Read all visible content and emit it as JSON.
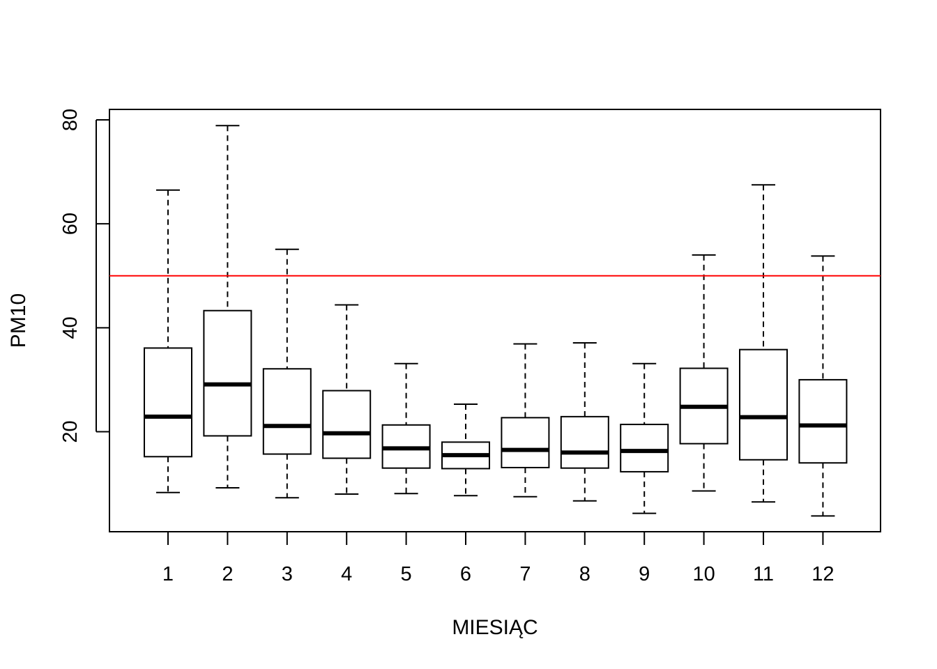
{
  "chart_data": {
    "type": "boxplot",
    "xlabel": "MIESIĄC",
    "ylabel": "PM10",
    "categories": [
      "1",
      "2",
      "3",
      "4",
      "5",
      "6",
      "7",
      "8",
      "9",
      "10",
      "11",
      "12"
    ],
    "yticks": [
      20,
      40,
      60,
      80
    ],
    "ytick_labels": [
      "20",
      "40",
      "60",
      "80"
    ],
    "ylim": [
      2.5,
      82
    ],
    "boxes": [
      {
        "category": "1",
        "whisker_low": 8.3,
        "q1": 15.2,
        "median": 22.9,
        "q3": 36.1,
        "whisker_high": 66.5
      },
      {
        "category": "2",
        "whisker_low": 9.2,
        "q1": 19.2,
        "median": 29.1,
        "q3": 43.3,
        "whisker_high": 78.9
      },
      {
        "category": "3",
        "whisker_low": 7.3,
        "q1": 15.7,
        "median": 21.1,
        "q3": 32.1,
        "whisker_high": 55.1
      },
      {
        "category": "4",
        "whisker_low": 8.0,
        "q1": 14.9,
        "median": 19.7,
        "q3": 27.9,
        "whisker_high": 44.4
      },
      {
        "category": "5",
        "whisker_low": 8.1,
        "q1": 13.0,
        "median": 16.8,
        "q3": 21.3,
        "whisker_high": 33.1
      },
      {
        "category": "6",
        "whisker_low": 7.7,
        "q1": 12.9,
        "median": 15.5,
        "q3": 18.0,
        "whisker_high": 25.3
      },
      {
        "category": "7",
        "whisker_low": 7.5,
        "q1": 13.1,
        "median": 16.5,
        "q3": 22.7,
        "whisker_high": 36.9
      },
      {
        "category": "8",
        "whisker_low": 6.7,
        "q1": 13.0,
        "median": 16.0,
        "q3": 22.9,
        "whisker_high": 37.1
      },
      {
        "category": "9",
        "whisker_low": 4.3,
        "q1": 12.3,
        "median": 16.3,
        "q3": 21.4,
        "whisker_high": 33.1
      },
      {
        "category": "10",
        "whisker_low": 8.6,
        "q1": 17.7,
        "median": 24.8,
        "q3": 32.2,
        "whisker_high": 54.0
      },
      {
        "category": "11",
        "whisker_low": 6.5,
        "q1": 14.6,
        "median": 22.8,
        "q3": 35.8,
        "whisker_high": 67.5
      },
      {
        "category": "12",
        "whisker_low": 3.8,
        "q1": 14.0,
        "median": 21.2,
        "q3": 30.0,
        "whisker_high": 53.8
      }
    ],
    "reference_line": {
      "y": 50,
      "color": "#ff0000"
    },
    "colors": {
      "box": "#000000",
      "background": "#ffffff"
    },
    "grid": false,
    "legend": "none"
  }
}
